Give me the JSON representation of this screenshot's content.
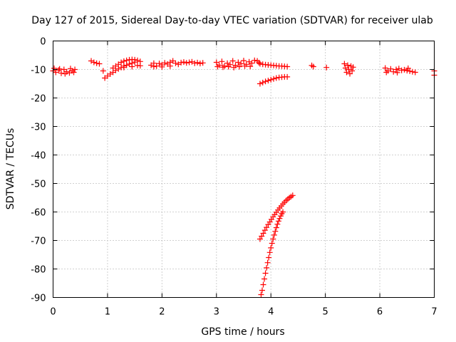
{
  "chart_data": {
    "type": "scatter",
    "title": "Day 127 of 2015, Sidereal Day-to-day VTEC variation (SDTVAR) for receiver ulab",
    "xlabel": "GPS time / hours",
    "ylabel": "SDTVAR / TECUs",
    "xlim": [
      0,
      7
    ],
    "ylim": [
      -90,
      0
    ],
    "xticks": [
      0,
      1,
      2,
      3,
      4,
      5,
      6,
      7
    ],
    "yticks": [
      0,
      -10,
      -20,
      -30,
      -40,
      -50,
      -60,
      -70,
      -80,
      -90
    ],
    "xtick_labels": [
      "0",
      "1",
      "2",
      "3",
      "4",
      "5",
      "6",
      "7"
    ],
    "ytick_labels": [
      "0",
      "-10",
      "-20",
      "-30",
      "-40",
      "-50",
      "-60",
      "-70",
      "-80",
      "-90"
    ],
    "grid": true,
    "marker": "plus",
    "color": "#ff0000",
    "series": [
      {
        "points": [
          [
            0.0,
            -10.5
          ],
          [
            0.05,
            -11.0
          ],
          [
            0.1,
            -10.2
          ],
          [
            0.15,
            -11.3
          ],
          [
            0.2,
            -10.0
          ],
          [
            0.25,
            -10.8
          ],
          [
            0.3,
            -11.2
          ],
          [
            0.35,
            -10.5
          ],
          [
            0.4,
            -10.0
          ],
          [
            0.02,
            -9.6
          ],
          [
            0.12,
            -9.8
          ],
          [
            0.22,
            -11.5
          ],
          [
            0.32,
            -9.7
          ],
          [
            0.38,
            -11.0
          ],
          [
            0.7,
            -7.0
          ],
          [
            0.75,
            -7.5
          ],
          [
            0.8,
            -7.8
          ],
          [
            0.85,
            -8.0
          ],
          [
            0.92,
            -10.5
          ],
          [
            0.95,
            -13.0
          ],
          [
            1.0,
            -12.3
          ],
          [
            1.05,
            -11.6
          ],
          [
            1.1,
            -11.0
          ],
          [
            1.15,
            -10.3
          ],
          [
            1.2,
            -9.8
          ],
          [
            1.25,
            -9.3
          ],
          [
            1.3,
            -8.8
          ],
          [
            1.35,
            -8.5
          ],
          [
            1.4,
            -8.1
          ],
          [
            1.45,
            -7.8
          ],
          [
            1.5,
            -7.4
          ],
          [
            1.1,
            -9.5
          ],
          [
            1.15,
            -8.8
          ],
          [
            1.2,
            -8.2
          ],
          [
            1.25,
            -7.5
          ],
          [
            1.3,
            -7.1
          ],
          [
            1.35,
            -6.8
          ],
          [
            1.4,
            -6.6
          ],
          [
            1.45,
            -6.5
          ],
          [
            1.5,
            -6.6
          ],
          [
            1.55,
            -6.8
          ],
          [
            1.6,
            -7.2
          ],
          [
            1.55,
            -8.6
          ],
          [
            1.6,
            -8.7
          ],
          [
            1.3,
            -9.3
          ],
          [
            1.45,
            -9.0
          ],
          [
            1.8,
            -8.5
          ],
          [
            1.85,
            -7.8
          ],
          [
            1.9,
            -8.8
          ],
          [
            1.95,
            -7.9
          ],
          [
            2.0,
            -8.4
          ],
          [
            2.05,
            -7.7
          ],
          [
            2.1,
            -8.1
          ],
          [
            2.15,
            -7.5
          ],
          [
            2.2,
            -7.0
          ],
          [
            2.25,
            -7.8
          ],
          [
            2.3,
            -8.2
          ],
          [
            2.35,
            -7.6
          ],
          [
            2.4,
            -7.4
          ],
          [
            2.45,
            -7.7
          ],
          [
            2.5,
            -7.5
          ],
          [
            2.55,
            -7.3
          ],
          [
            2.6,
            -7.8
          ],
          [
            2.65,
            -7.6
          ],
          [
            2.7,
            -7.9
          ],
          [
            2.75,
            -7.7
          ],
          [
            1.85,
            -9.0
          ],
          [
            2.0,
            -9.1
          ],
          [
            2.15,
            -8.8
          ],
          [
            3.0,
            -7.5
          ],
          [
            3.05,
            -8.5
          ],
          [
            3.1,
            -7.2
          ],
          [
            3.15,
            -8.8
          ],
          [
            3.2,
            -7.8
          ],
          [
            3.25,
            -8.3
          ],
          [
            3.3,
            -7.0
          ],
          [
            3.35,
            -8.6
          ],
          [
            3.4,
            -7.5
          ],
          [
            3.45,
            -8.0
          ],
          [
            3.5,
            -6.9
          ],
          [
            3.55,
            -8.2
          ],
          [
            3.6,
            -7.3
          ],
          [
            3.65,
            -7.8
          ],
          [
            3.7,
            -6.8
          ],
          [
            3.75,
            -7.0
          ],
          [
            3.78,
            -7.6
          ],
          [
            3.02,
            -9.0
          ],
          [
            3.12,
            -9.2
          ],
          [
            3.22,
            -9.0
          ],
          [
            3.32,
            -9.3
          ],
          [
            3.42,
            -9.0
          ],
          [
            3.52,
            -8.8
          ],
          [
            3.62,
            -8.9
          ],
          [
            3.8,
            -8.0
          ],
          [
            3.85,
            -8.2
          ],
          [
            3.9,
            -8.3
          ],
          [
            3.95,
            -8.4
          ],
          [
            4.0,
            -8.5
          ],
          [
            4.05,
            -8.6
          ],
          [
            4.1,
            -8.7
          ],
          [
            4.15,
            -8.8
          ],
          [
            4.2,
            -8.8
          ],
          [
            4.25,
            -8.9
          ],
          [
            4.3,
            -9.0
          ],
          [
            3.8,
            -15.0
          ],
          [
            3.85,
            -14.6
          ],
          [
            3.9,
            -14.2
          ],
          [
            3.95,
            -13.9
          ],
          [
            4.0,
            -13.6
          ],
          [
            4.05,
            -13.3
          ],
          [
            4.1,
            -13.0
          ],
          [
            4.15,
            -12.8
          ],
          [
            4.2,
            -12.7
          ],
          [
            4.25,
            -12.6
          ],
          [
            4.3,
            -12.6
          ],
          [
            4.75,
            -8.6
          ],
          [
            4.78,
            -9.0
          ],
          [
            5.02,
            -9.3
          ],
          [
            5.35,
            -8.0
          ],
          [
            5.37,
            -9.5
          ],
          [
            5.39,
            -11.0
          ],
          [
            5.41,
            -8.5
          ],
          [
            5.43,
            -10.0
          ],
          [
            5.45,
            -11.5
          ],
          [
            5.47,
            -8.8
          ],
          [
            5.49,
            -10.5
          ],
          [
            5.51,
            -9.2
          ],
          [
            6.1,
            -9.5
          ],
          [
            6.15,
            -10.5
          ],
          [
            6.2,
            -9.8
          ],
          [
            6.25,
            -10.8
          ],
          [
            6.3,
            -10.0
          ],
          [
            6.35,
            -9.7
          ],
          [
            6.4,
            -10.3
          ],
          [
            6.45,
            -10.1
          ],
          [
            6.5,
            -10.4
          ],
          [
            6.55,
            -10.6
          ],
          [
            6.6,
            -10.8
          ],
          [
            6.65,
            -11.0
          ],
          [
            6.12,
            -11.0
          ],
          [
            6.32,
            -11.1
          ],
          [
            6.52,
            -9.6
          ],
          [
            7.0,
            -10.5
          ],
          [
            7.0,
            -12.0
          ],
          [
            3.8,
            -69.5
          ],
          [
            3.83,
            -68.5
          ],
          [
            3.86,
            -67.5
          ],
          [
            3.89,
            -66.4
          ],
          [
            3.92,
            -65.4
          ],
          [
            3.95,
            -64.4
          ],
          [
            3.98,
            -63.5
          ],
          [
            4.01,
            -62.6
          ],
          [
            4.04,
            -61.7
          ],
          [
            4.07,
            -60.9
          ],
          [
            4.1,
            -60.1
          ],
          [
            4.13,
            -59.3
          ],
          [
            4.16,
            -58.6
          ],
          [
            4.19,
            -57.9
          ],
          [
            4.22,
            -57.2
          ],
          [
            4.25,
            -56.6
          ],
          [
            4.28,
            -56.0
          ],
          [
            4.31,
            -55.5
          ],
          [
            4.34,
            -55.0
          ],
          [
            4.37,
            -54.6
          ],
          [
            4.4,
            -54.2
          ],
          [
            3.82,
            -89.0
          ],
          [
            3.84,
            -87.5
          ],
          [
            3.86,
            -85.5
          ],
          [
            3.88,
            -83.5
          ],
          [
            3.9,
            -81.5
          ],
          [
            3.92,
            -79.6
          ],
          [
            3.94,
            -77.8
          ],
          [
            3.96,
            -76.0
          ],
          [
            3.98,
            -74.2
          ],
          [
            4.0,
            -72.6
          ],
          [
            4.02,
            -71.0
          ],
          [
            4.04,
            -69.5
          ],
          [
            4.06,
            -68.1
          ],
          [
            4.08,
            -66.8
          ],
          [
            4.1,
            -65.5
          ],
          [
            4.12,
            -64.3
          ],
          [
            4.14,
            -63.2
          ],
          [
            4.16,
            -62.3
          ],
          [
            4.18,
            -61.4
          ],
          [
            4.2,
            -60.6
          ],
          [
            4.22,
            -60.0
          ]
        ]
      }
    ]
  }
}
